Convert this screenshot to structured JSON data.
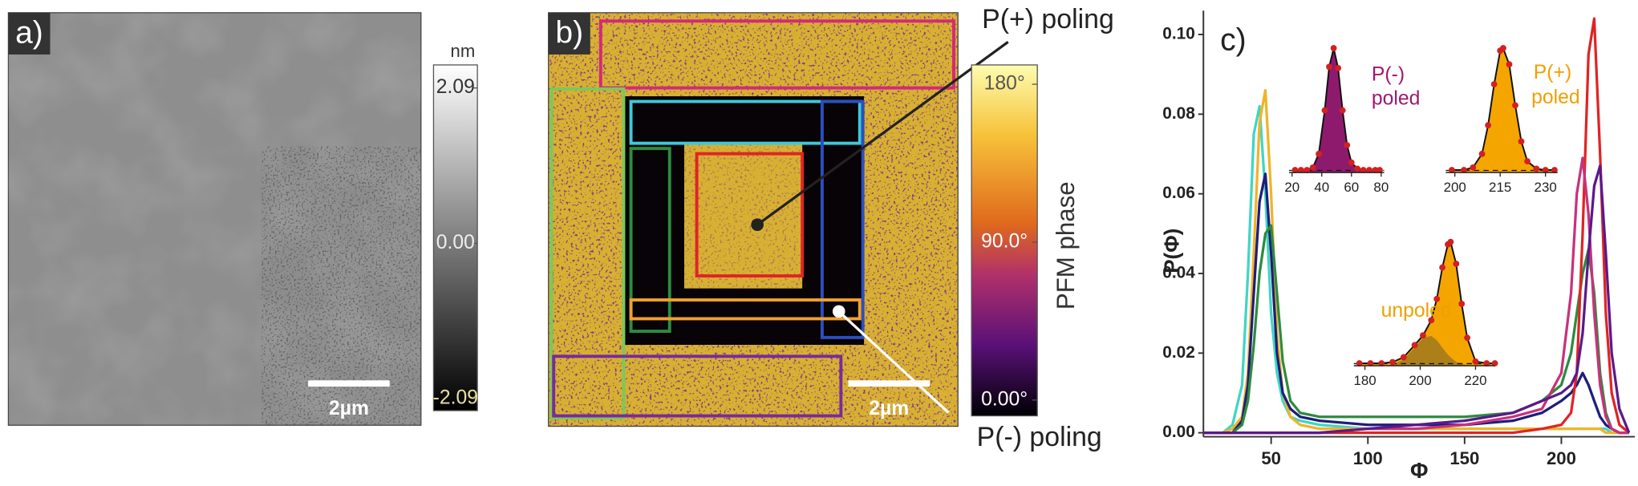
{
  "panel_a": {
    "label": "a)",
    "scale_bar": "2µm",
    "colorbar": {
      "unit": "nm",
      "clim": [
        -2.25,
        2.4
      ],
      "ticks": [
        {
          "value": 2.09,
          "label": "2.09"
        },
        {
          "value": 0,
          "label": "0.00"
        },
        {
          "value": -2.09,
          "label": "-2.09"
        }
      ]
    }
  },
  "panel_b": {
    "label": "b)",
    "scale_bar": "2µm",
    "annotations": [
      "P(+) poling",
      "P(-) poling"
    ],
    "colorbar": {
      "title": "PFM phase",
      "clim": [
        -9,
        191
      ],
      "ticks": [
        {
          "value": 180,
          "label": "180°"
        },
        {
          "value": 90,
          "label": "90.0°"
        },
        {
          "value": 0,
          "label": "0.00°"
        }
      ]
    }
  },
  "chart_data": [
    {
      "type": "line",
      "label": "c)",
      "xlabel": "Φ",
      "ylabel": "P(Φ)",
      "xlim": [
        15,
        238
      ],
      "ylim": [
        -0.001,
        0.106
      ],
      "xticks": [
        50,
        100,
        150,
        200
      ],
      "yticks": [
        {
          "value": 0,
          "label": "0.00"
        },
        {
          "value": 0.02,
          "label": "0.02"
        },
        {
          "value": 0.04,
          "label": "0.04"
        },
        {
          "value": 0.06,
          "label": "0.06"
        },
        {
          "value": 0.08,
          "label": "0.08"
        },
        {
          "value": 0.1,
          "label": "0.10"
        }
      ],
      "x": [
        15,
        25,
        30,
        35,
        38,
        41,
        44,
        47,
        50,
        53,
        56,
        60,
        65,
        75,
        100,
        125,
        150,
        175,
        190,
        200,
        205,
        208,
        211,
        214,
        217,
        220,
        223,
        226,
        230,
        235
      ],
      "series": [
        {
          "color": "#3fd6c4",
          "values": [
            0,
            0,
            0.002,
            0.012,
            0.04,
            0.075,
            0.082,
            0.06,
            0.03,
            0.015,
            0.008,
            0.004,
            0.003,
            0.002,
            0.001,
            0.001,
            0.001,
            0.001,
            0.001,
            0.001,
            0.001,
            0.001,
            0.001,
            0.001,
            0.001,
            0.001,
            0.001,
            0,
            0,
            0
          ]
        },
        {
          "color": "#f0b429",
          "values": [
            0,
            0,
            0.001,
            0.004,
            0.015,
            0.045,
            0.078,
            0.086,
            0.06,
            0.025,
            0.01,
            0.004,
            0.002,
            0.001,
            0.001,
            0.001,
            0.001,
            0.001,
            0.001,
            0.001,
            0.001,
            0.001,
            0.001,
            0.001,
            0.001,
            0.001,
            0,
            0,
            0,
            0
          ]
        },
        {
          "color": "#1e1e7c",
          "values": [
            0,
            0,
            0,
            0.003,
            0.012,
            0.035,
            0.058,
            0.065,
            0.045,
            0.02,
            0.01,
            0.006,
            0.004,
            0.003,
            0.002,
            0.002,
            0.002,
            0.003,
            0.005,
            0.008,
            0.01,
            0.012,
            0.015,
            0.012,
            0.008,
            0.004,
            0.002,
            0.001,
            0,
            0
          ]
        },
        {
          "color": "#2e8b3e",
          "values": [
            0,
            0,
            0,
            0.002,
            0.008,
            0.022,
            0.04,
            0.05,
            0.052,
            0.035,
            0.018,
            0.008,
            0.005,
            0.004,
            0.004,
            0.004,
            0.004,
            0.005,
            0.008,
            0.012,
            0.02,
            0.03,
            0.04,
            0.046,
            0.035,
            0.015,
            0.005,
            0.001,
            0,
            0
          ]
        },
        {
          "color": "#e02424",
          "values": [
            0,
            0,
            0,
            0,
            0,
            0,
            0,
            0,
            0,
            0,
            0,
            0,
            0,
            0,
            0,
            0,
            0,
            0,
            0.001,
            0.002,
            0.005,
            0.015,
            0.05,
            0.095,
            0.104,
            0.07,
            0.03,
            0.01,
            0.002,
            0
          ]
        },
        {
          "color": "#c8327a",
          "values": [
            0,
            0,
            0,
            0,
            0,
            0,
            0,
            0,
            0,
            0,
            0,
            0,
            0,
            0,
            0.001,
            0.001,
            0.002,
            0.004,
            0.006,
            0.015,
            0.035,
            0.06,
            0.069,
            0.055,
            0.03,
            0.012,
            0.004,
            0.001,
            0,
            0
          ]
        },
        {
          "color": "#5a1a8a",
          "values": [
            0,
            0,
            0,
            0,
            0,
            0,
            0,
            0,
            0,
            0,
            0,
            0,
            0,
            0,
            0.001,
            0.002,
            0.003,
            0.005,
            0.008,
            0.01,
            0.012,
            0.015,
            0.025,
            0.045,
            0.062,
            0.067,
            0.045,
            0.02,
            0.006,
            0
          ]
        }
      ]
    },
    {
      "type": "area",
      "annotations": [
        "P(-)",
        "poled"
      ],
      "annotation_color": "#a0186e",
      "marker_color": "#d42020",
      "xlim": [
        18,
        82
      ],
      "ylim": [
        0,
        1.05
      ],
      "xticks": [
        20,
        40,
        60,
        80
      ],
      "x": [
        22,
        26,
        30,
        34,
        38,
        42,
        45,
        48,
        51,
        54,
        57,
        60,
        64,
        68,
        72,
        76,
        79
      ],
      "series": [
        {
          "color": "#8e1a6e",
          "values": [
            0.02,
            0.02,
            0.02,
            0.04,
            0.15,
            0.5,
            0.85,
            1,
            0.84,
            0.5,
            0.22,
            0.08,
            0.03,
            0.02,
            0.02,
            0.02,
            0.02
          ]
        }
      ]
    },
    {
      "type": "area",
      "annotations": [
        "P(+)",
        "poled"
      ],
      "annotation_color": "#f0a000",
      "marker_color": "#d42020",
      "xlim": [
        197,
        234
      ],
      "ylim": [
        0,
        1.05
      ],
      "xticks": [
        200,
        215,
        230
      ],
      "x": [
        199,
        203,
        206,
        209,
        211,
        213,
        215,
        216,
        218,
        220,
        222,
        224,
        227,
        230,
        233
      ],
      "series": [
        {
          "color": "#f5a500",
          "values": [
            0.02,
            0.02,
            0.04,
            0.15,
            0.38,
            0.71,
            0.98,
            1,
            0.87,
            0.54,
            0.25,
            0.09,
            0.03,
            0.02,
            0.02
          ]
        }
      ]
    },
    {
      "type": "area",
      "annotations": [
        "unpoled"
      ],
      "annotation_color": "#f0a000",
      "marker_color": "#d42020",
      "xlim": [
        176,
        227
      ],
      "ylim": [
        0,
        1.05
      ],
      "xticks": [
        180,
        200,
        220
      ],
      "x": [
        178,
        182,
        186,
        190,
        194,
        198,
        201,
        204,
        206,
        208,
        210,
        211,
        213,
        215,
        217,
        220,
        224,
        227
      ],
      "series": [
        {
          "color": "#f5a500",
          "values": [
            0.02,
            0.02,
            0.02,
            0.03,
            0.07,
            0.17,
            0.25,
            0.375,
            0.55,
            0.81,
            1,
            1.02,
            0.84,
            0.51,
            0.23,
            0.035,
            0.02,
            0.02
          ]
        },
        {
          "color": "#a0781e",
          "values": [
            0,
            0,
            0,
            0.01,
            0.05,
            0.15,
            0.23,
            0.245,
            0.21,
            0.15,
            0.09,
            0.07,
            0.03,
            0.014,
            0.005,
            0,
            0,
            0
          ]
        }
      ]
    }
  ]
}
